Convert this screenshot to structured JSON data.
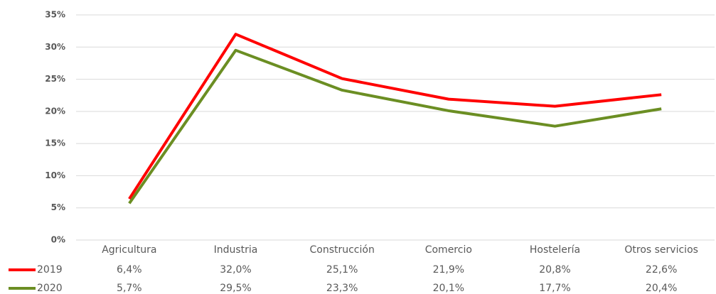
{
  "chart_data": {
    "type": "line",
    "categories": [
      "Agricultura",
      "Industria",
      "Construcción",
      "Comercio",
      "Hostelería",
      "Otros servicios"
    ],
    "series": [
      {
        "name": "2019",
        "color": "#ff0000",
        "values": [
          6.4,
          32.0,
          25.1,
          21.9,
          20.8,
          22.6
        ],
        "value_labels": [
          "6,4%",
          "32,0%",
          "25,1%",
          "21,9%",
          "20,8%",
          "22,6%"
        ]
      },
      {
        "name": "2020",
        "color": "#6b8e23",
        "values": [
          5.7,
          29.5,
          23.3,
          20.1,
          17.7,
          20.4
        ],
        "value_labels": [
          "5,7%",
          "29,5%",
          "23,3%",
          "20,1%",
          "17,7%",
          "20,4%"
        ]
      }
    ],
    "ylim": [
      0,
      35
    ],
    "yticks": [
      {
        "value": 0,
        "label": "0%"
      },
      {
        "value": 5,
        "label": "5%"
      },
      {
        "value": 10,
        "label": "10%"
      },
      {
        "value": 15,
        "label": "15%"
      },
      {
        "value": 20,
        "label": "20%"
      },
      {
        "value": 25,
        "label": "25%"
      },
      {
        "value": 30,
        "label": "30%"
      },
      {
        "value": 35,
        "label": "35%"
      }
    ],
    "grid": true
  }
}
